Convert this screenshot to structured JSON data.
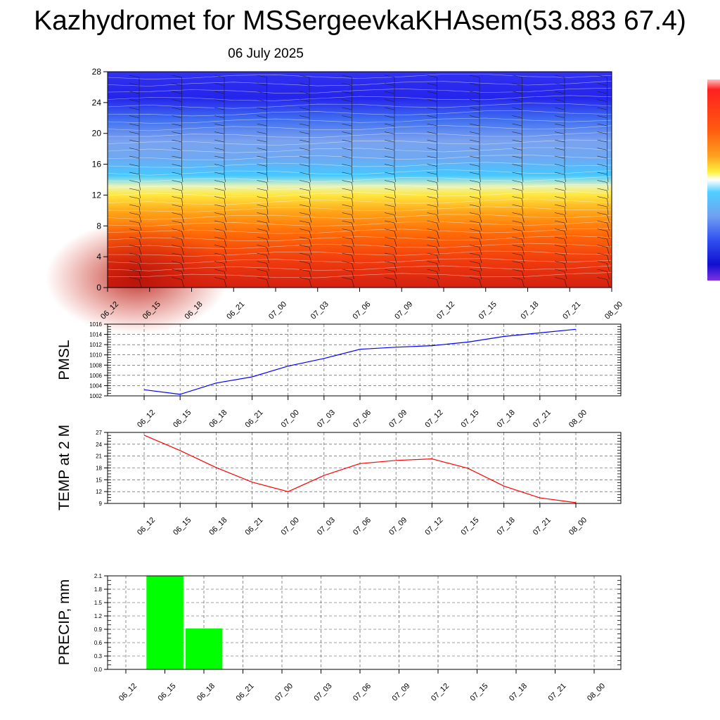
{
  "title": "Kazhydromet for MSSergeevkaKHAsem(53.883 67.4)",
  "subtitle": "06 July 2025",
  "chart_data": [
    {
      "type": "heatmap",
      "description_axis": "height",
      "x_tick_labels": [
        "06_12",
        "06_15",
        "06_18",
        "06_21",
        "07_00",
        "07_03",
        "07_06",
        "07_09",
        "07_12",
        "07_15",
        "07_18",
        "07_21",
        "08_00"
      ],
      "y_ticks": [
        0,
        4,
        8,
        12,
        16,
        20,
        24,
        28
      ],
      "ylim": [
        0,
        28
      ],
      "colorbar": true,
      "wind_barbs": true
    },
    {
      "type": "line",
      "ylabel": "PMSL",
      "x_tick_labels": [
        "06_12",
        "06_15",
        "06_18",
        "06_21",
        "07_00",
        "07_03",
        "07_06",
        "07_09",
        "07_12",
        "07_15",
        "07_18",
        "07_21",
        "08_00"
      ],
      "y_ticks": [
        1002,
        1004,
        1006,
        1008,
        1010,
        1012,
        1014,
        1016
      ],
      "ylim": [
        1002,
        1016
      ],
      "series": [
        {
          "values": [
            1003.2,
            1002.3,
            1004.5,
            1005.7,
            1007.8,
            1009.3,
            1011.1,
            1011.5,
            1011.8,
            1012.5,
            1013.6,
            1014.3,
            1015.0
          ],
          "color": "#0000ff"
        }
      ],
      "grid": true
    },
    {
      "type": "line",
      "ylabel": "TEMP at 2 M",
      "x_tick_labels": [
        "06_12",
        "06_15",
        "06_18",
        "06_21",
        "07_00",
        "07_03",
        "07_06",
        "07_09",
        "07_12",
        "07_15",
        "07_18",
        "07_21",
        "08_00"
      ],
      "y_ticks": [
        9,
        12,
        15,
        18,
        21,
        24,
        27
      ],
      "ylim": [
        9,
        27
      ],
      "series": [
        {
          "values": [
            26.3,
            22.4,
            18.1,
            14.4,
            12.0,
            16.1,
            19.1,
            19.9,
            20.3,
            17.9,
            13.4,
            10.4,
            9.2
          ],
          "color": "#ff0000"
        }
      ],
      "grid": true
    },
    {
      "type": "bar",
      "ylabel": "PRECIP, mm",
      "x_tick_labels": [
        "06_12",
        "06_15",
        "06_18",
        "06_21",
        "07_00",
        "07_03",
        "07_06",
        "07_09",
        "07_12",
        "07_15",
        "07_18",
        "07_21",
        "08_00"
      ],
      "y_tick_labels": [
        "0.0",
        "0.3",
        "0.6",
        "0.9",
        "1.2",
        "1.5",
        "1.8",
        "2.1"
      ],
      "ylim": [
        0,
        2.1
      ],
      "bars": [
        {
          "category": "06_15",
          "value": 2.1
        },
        {
          "category": "06_18",
          "value": 0.92
        }
      ],
      "bar_color": "#00ff00",
      "grid": true
    }
  ]
}
